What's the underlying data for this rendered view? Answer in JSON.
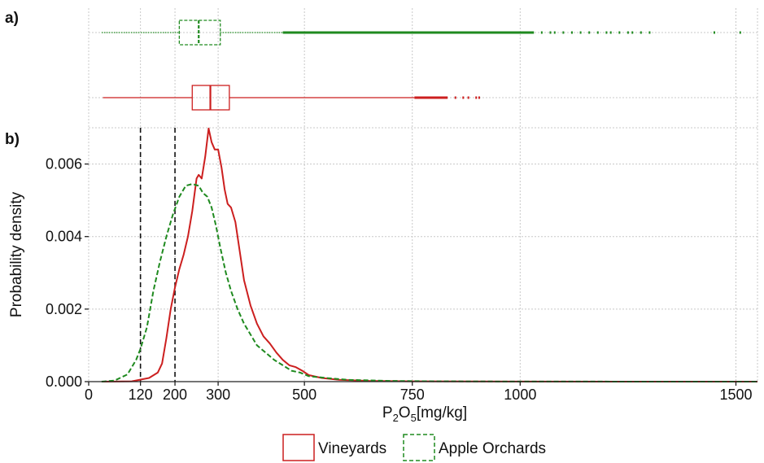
{
  "panels": {
    "a": "a)",
    "b": "b)"
  },
  "colors": {
    "vineyards": "#cc1f1f",
    "apple": "#1f8a1f",
    "grid": "#c8c8c8",
    "threshold": "#111111"
  },
  "chart_data": {
    "type": "area",
    "xlabel": {
      "base": "P",
      "sub1": "2",
      "mid": "O",
      "sub2": "5",
      "tail": "[mg/kg]"
    },
    "ylabel": "Probability density",
    "xlim": [
      0,
      1550
    ],
    "ylim": [
      0,
      0.007
    ],
    "x_ticks": [
      0,
      120,
      200,
      300,
      500,
      750,
      1000,
      1500
    ],
    "y_ticks": [
      0.0,
      0.002,
      0.004,
      0.006
    ],
    "y_tick_labels": [
      "0.000",
      "0.002",
      "0.004",
      "0.006"
    ],
    "grid": true,
    "thresholds": [
      120,
      200
    ],
    "series": [
      {
        "name": "Vineyards",
        "key": "vineyards",
        "style": "solid",
        "density": [
          [
            30,
            0
          ],
          [
            100,
            1e-05
          ],
          [
            140,
            0.0001
          ],
          [
            160,
            0.00025
          ],
          [
            170,
            0.0005
          ],
          [
            180,
            0.0012
          ],
          [
            190,
            0.002
          ],
          [
            200,
            0.0026
          ],
          [
            210,
            0.0031
          ],
          [
            220,
            0.0035
          ],
          [
            230,
            0.004
          ],
          [
            240,
            0.0047
          ],
          [
            250,
            0.0056
          ],
          [
            255,
            0.0057
          ],
          [
            262,
            0.0056
          ],
          [
            270,
            0.0062
          ],
          [
            278,
            0.00698
          ],
          [
            285,
            0.0066
          ],
          [
            292,
            0.0064
          ],
          [
            300,
            0.0064
          ],
          [
            308,
            0.0059
          ],
          [
            315,
            0.0053
          ],
          [
            322,
            0.0049
          ],
          [
            330,
            0.0048
          ],
          [
            340,
            0.0044
          ],
          [
            350,
            0.0036
          ],
          [
            360,
            0.0028
          ],
          [
            375,
            0.0021
          ],
          [
            390,
            0.0016
          ],
          [
            405,
            0.00125
          ],
          [
            420,
            0.00105
          ],
          [
            435,
            0.0008
          ],
          [
            450,
            0.0006
          ],
          [
            465,
            0.00045
          ],
          [
            480,
            0.0004
          ],
          [
            495,
            0.0003
          ],
          [
            510,
            0.00018
          ],
          [
            540,
            0.0001
          ],
          [
            580,
            5e-05
          ],
          [
            650,
            2e-05
          ],
          [
            750,
            1e-05
          ],
          [
            1000,
            3e-06
          ],
          [
            1550,
            0
          ]
        ],
        "box": {
          "whisker_low": 33,
          "q1": 240,
          "median": 282,
          "q3": 326,
          "whisker_high": 755
        },
        "outliers": [
          775,
          790,
          812,
          830,
          850,
          868,
          880,
          898,
          905
        ]
      },
      {
        "name": "Apple Orchards",
        "key": "apple",
        "style": "dashed",
        "density": [
          [
            30,
            0
          ],
          [
            60,
            3e-05
          ],
          [
            90,
            0.0002
          ],
          [
            110,
            0.0006
          ],
          [
            120,
            0.0009
          ],
          [
            135,
            0.0015
          ],
          [
            150,
            0.0025
          ],
          [
            165,
            0.0033
          ],
          [
            180,
            0.004
          ],
          [
            195,
            0.0046
          ],
          [
            210,
            0.0051
          ],
          [
            225,
            0.0054
          ],
          [
            240,
            0.00545
          ],
          [
            255,
            0.0054
          ],
          [
            265,
            0.0052
          ],
          [
            275,
            0.0051
          ],
          [
            285,
            0.0048
          ],
          [
            295,
            0.0043
          ],
          [
            305,
            0.0037
          ],
          [
            318,
            0.003
          ],
          [
            330,
            0.0025
          ],
          [
            345,
            0.002
          ],
          [
            360,
            0.0016
          ],
          [
            375,
            0.0013
          ],
          [
            390,
            0.001
          ],
          [
            410,
            0.0008
          ],
          [
            430,
            0.0006
          ],
          [
            450,
            0.00045
          ],
          [
            470,
            0.0003
          ],
          [
            490,
            0.00025
          ],
          [
            510,
            0.00015
          ],
          [
            550,
            0.0001
          ],
          [
            600,
            5e-05
          ],
          [
            700,
            2e-05
          ],
          [
            800,
            1e-05
          ],
          [
            1000,
            3e-06
          ],
          [
            1550,
            0
          ]
        ],
        "box": {
          "whisker_low": 30,
          "q1": 210,
          "median": 255,
          "q3": 305,
          "whisker_high": 450
        },
        "outliers": [
          470,
          510,
          560,
          600,
          650,
          700,
          750,
          800,
          850,
          900,
          950,
          1000,
          1030,
          1050,
          1070,
          1080,
          1100,
          1120,
          1140,
          1160,
          1180,
          1200,
          1210,
          1230,
          1250,
          1260,
          1280,
          1300,
          1450,
          1510
        ]
      }
    ]
  }
}
